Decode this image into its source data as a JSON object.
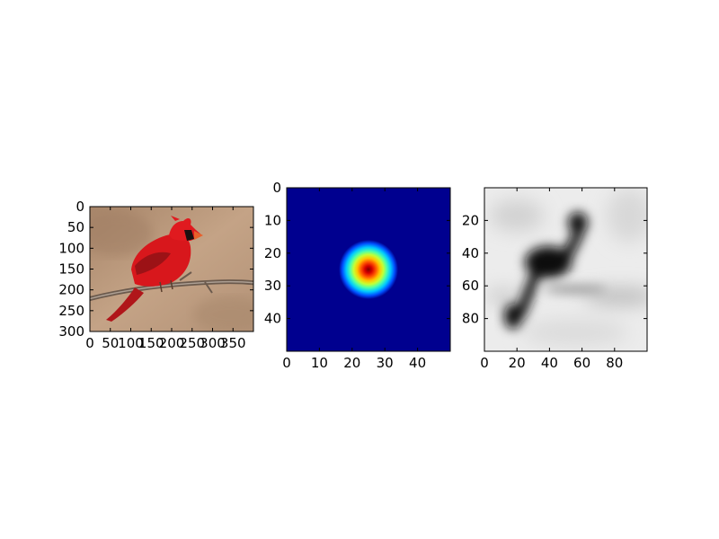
{
  "chart_data": [
    {
      "type": "heatmap",
      "content": "photo of a red cardinal perched on a branch",
      "xticks": [
        0,
        50,
        100,
        150,
        200,
        250,
        300,
        350
      ],
      "yticks": [
        0,
        50,
        100,
        150,
        200,
        250,
        300
      ],
      "xlim": [
        0,
        400
      ],
      "ylim": [
        300,
        0
      ],
      "grid": false
    },
    {
      "type": "heatmap",
      "content": "2D Gaussian kernel, jet colormap",
      "xticks": [
        0,
        10,
        20,
        30,
        40
      ],
      "yticks": [
        0,
        10,
        20,
        30,
        40
      ],
      "xlim": [
        0,
        50
      ],
      "ylim": [
        50,
        0
      ],
      "peak": [
        24.5,
        24.5
      ],
      "grid": false
    },
    {
      "type": "heatmap",
      "content": "blurred grayscale bird silhouette",
      "xticks": [
        0,
        20,
        40,
        60,
        80
      ],
      "yticks": [
        20,
        40,
        60,
        80
      ],
      "xlim": [
        0,
        100
      ],
      "ylim": [
        100,
        0
      ],
      "grid": false
    }
  ]
}
